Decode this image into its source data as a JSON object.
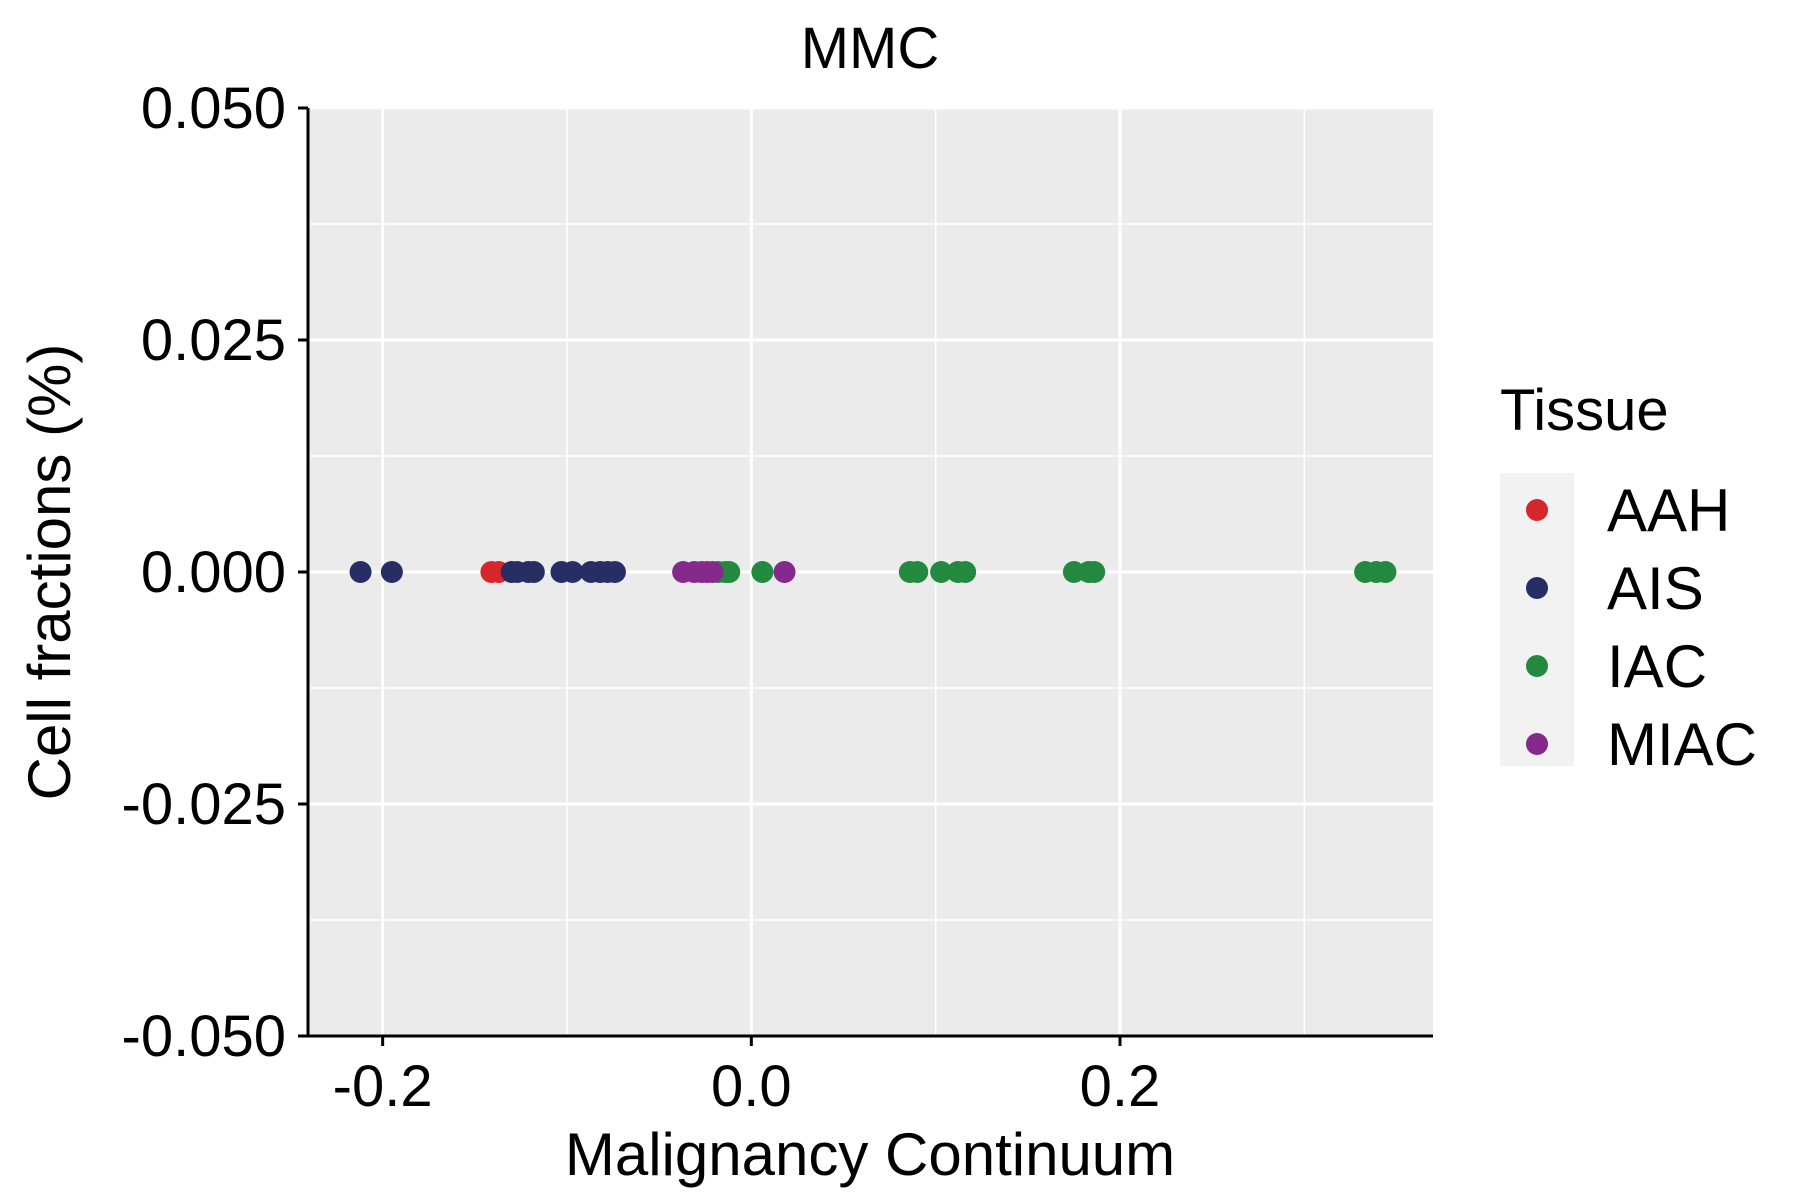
{
  "chart_data": {
    "type": "scatter",
    "title": "MMC",
    "xlabel": "Malignancy Continuum",
    "ylabel": "Cell fractions (%)",
    "xlim": [
      -0.2405,
      0.3698
    ],
    "ylim": [
      -0.05,
      0.05
    ],
    "x_ticks": [
      -0.2,
      0.0,
      0.2
    ],
    "x_tick_labels": [
      "-0.2",
      "0.0",
      "0.2"
    ],
    "y_ticks": [
      -0.05,
      -0.025,
      0.0,
      0.025,
      0.05
    ],
    "y_tick_labels": [
      "-0.050",
      "-0.025",
      "0.000",
      "0.025",
      "0.050"
    ],
    "grid": true,
    "legend": {
      "title": "Tissue",
      "position": "right",
      "entries": [
        "AAH",
        "AIS",
        "IAC",
        "MIAC"
      ]
    },
    "colors": {
      "AAH": "#d7262b",
      "AIS": "#262e64",
      "IAC": "#22893e",
      "MIAC": "#86298c",
      "panel": "#ebebeb",
      "gridline": "#ffffff"
    },
    "series": [
      {
        "name": "AAH",
        "x": [
          -0.141,
          -0.137
        ],
        "y": [
          0,
          0
        ]
      },
      {
        "name": "AIS",
        "x": [
          -0.212,
          -0.195,
          -0.13,
          -0.127,
          -0.121,
          -0.118,
          -0.103,
          -0.097,
          -0.087,
          -0.082,
          -0.078,
          -0.074
        ],
        "y": [
          0,
          0,
          0,
          0,
          0,
          0,
          0,
          0,
          0,
          0,
          0,
          0
        ]
      },
      {
        "name": "IAC",
        "x": [
          -0.018,
          -0.014,
          -0.012,
          0.006,
          0.086,
          0.09,
          0.103,
          0.112,
          0.116,
          0.175,
          0.183,
          0.186,
          0.333,
          0.339,
          0.344
        ],
        "y": [
          0,
          0,
          0,
          0,
          0,
          0,
          0,
          0,
          0,
          0,
          0,
          0,
          0,
          0,
          0
        ]
      },
      {
        "name": "MIAC",
        "x": [
          -0.037,
          -0.031,
          -0.027,
          -0.024,
          -0.021,
          0.018
        ],
        "y": [
          0,
          0,
          0,
          0,
          0,
          0
        ]
      }
    ]
  }
}
